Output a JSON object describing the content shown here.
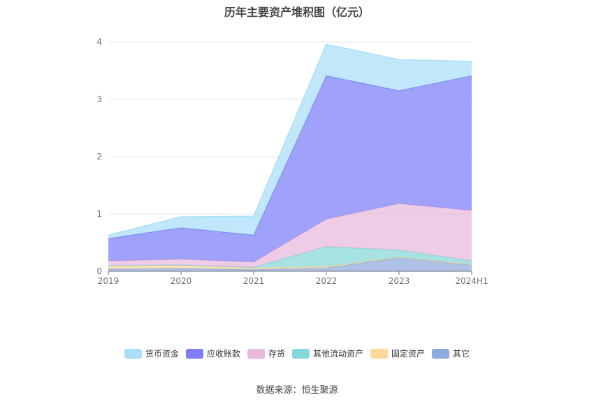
{
  "chart_data": {
    "type": "area",
    "stacked": true,
    "title": "历年主要资产堆积图（亿元）",
    "categories": [
      "2019",
      "2020",
      "2021",
      "2022",
      "2023",
      "2024H1"
    ],
    "ylim": [
      0,
      4
    ],
    "yticks": [
      "0",
      "1",
      "2",
      "3",
      "4"
    ],
    "grid": true,
    "legend_position": "bottom",
    "series": [
      {
        "name": "其它",
        "color": "#8faadc",
        "values": [
          0.04,
          0.05,
          0.03,
          0.06,
          0.24,
          0.11
        ]
      },
      {
        "name": "固定资产",
        "color": "#ffd89b",
        "values": [
          0.05,
          0.05,
          0.03,
          0.02,
          0.01,
          0.01
        ]
      },
      {
        "name": "其他流动资产",
        "color": "#86d8d8",
        "values": [
          0.01,
          0.01,
          0.01,
          0.35,
          0.12,
          0.06
        ]
      },
      {
        "name": "存货",
        "color": "#e8b9dc",
        "values": [
          0.08,
          0.1,
          0.09,
          0.48,
          0.81,
          0.88
        ]
      },
      {
        "name": "应收账款",
        "color": "#7b7ef7",
        "values": [
          0.39,
          0.55,
          0.47,
          2.5,
          1.97,
          2.35
        ]
      },
      {
        "name": "货币资金",
        "color": "#a9dff8",
        "values": [
          0.06,
          0.19,
          0.33,
          0.55,
          0.54,
          0.25
        ]
      }
    ],
    "legend_order": [
      "货币资金",
      "应收账款",
      "存货",
      "其他流动资产",
      "固定资产",
      "其它"
    ]
  },
  "source": "数据来源：恒生聚源"
}
